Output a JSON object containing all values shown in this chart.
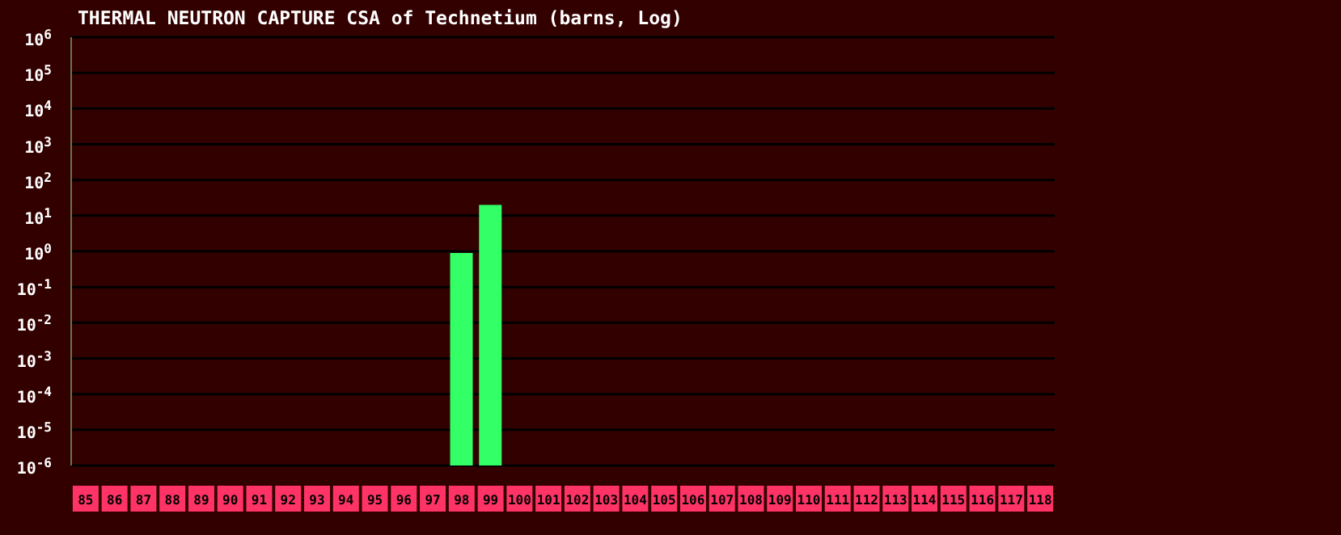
{
  "chart_data": {
    "type": "bar",
    "title": "THERMAL NEUTRON CAPTURE CSA of Technetium (barns, Log)",
    "categories": [
      "85",
      "86",
      "87",
      "88",
      "89",
      "90",
      "91",
      "92",
      "93",
      "94",
      "95",
      "96",
      "97",
      "98",
      "99",
      "100",
      "101",
      "102",
      "103",
      "104",
      "105",
      "106",
      "107",
      "108",
      "109",
      "110",
      "111",
      "112",
      "113",
      "114",
      "115",
      "116",
      "117",
      "118"
    ],
    "values": [
      null,
      null,
      null,
      null,
      null,
      null,
      null,
      null,
      null,
      null,
      null,
      null,
      null,
      0.9,
      20,
      null,
      null,
      null,
      null,
      null,
      null,
      null,
      null,
      null,
      null,
      null,
      null,
      null,
      null,
      null,
      null,
      null,
      null,
      null
    ],
    "color": "#33ff66",
    "log": true,
    "ylim": [
      1e-06,
      1000000
    ],
    "yticks": [
      {
        "value": 1e-06,
        "label": "10$^{-6}$"
      },
      {
        "value": 1e-05,
        "label": "10$^{-5}$"
      },
      {
        "value": 0.0001,
        "label": "10$^{-4}$"
      },
      {
        "value": 0.001,
        "label": "10$^{-3}$"
      },
      {
        "value": 0.01,
        "label": "10$^{-2}$"
      },
      {
        "value": 0.1,
        "label": "10$^{-1}$"
      },
      {
        "value": 1,
        "label": "10$^{0}$"
      },
      {
        "value": 10,
        "label": "10$^{1}$"
      },
      {
        "value": 100,
        "label": "10$^{2}$"
      },
      {
        "value": 1000,
        "label": "10$^{3}$"
      },
      {
        "value": 10000,
        "label": "10$^{4}$"
      },
      {
        "value": 100000,
        "label": "10$^{5}$"
      },
      {
        "value": 1000000,
        "label": "10$^{6}$"
      }
    ],
    "grid": "y"
  }
}
